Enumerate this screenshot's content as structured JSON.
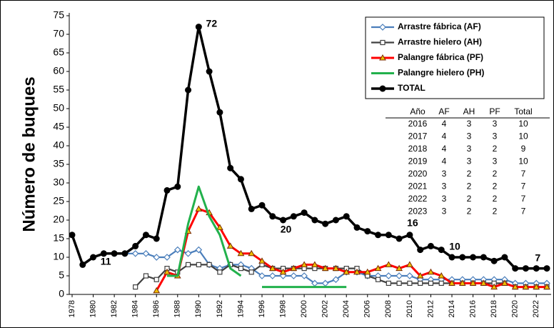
{
  "chart_data": {
    "type": "line",
    "y_label": "Número de buques",
    "x": [
      1978,
      1979,
      1980,
      1981,
      1982,
      1983,
      1984,
      1985,
      1986,
      1987,
      1988,
      1989,
      1990,
      1991,
      1992,
      1993,
      1994,
      1995,
      1996,
      1997,
      1998,
      1999,
      2000,
      2001,
      2002,
      2003,
      2004,
      2005,
      2006,
      2007,
      2008,
      2009,
      2010,
      2011,
      2012,
      2013,
      2014,
      2015,
      2016,
      2017,
      2018,
      2019,
      2020,
      2021,
      2022,
      2023
    ],
    "xlim": [
      1978,
      2023
    ],
    "xticks": [
      1978,
      1980,
      1982,
      1984,
      1986,
      1988,
      1990,
      1992,
      1994,
      1996,
      1998,
      2000,
      2002,
      2004,
      2006,
      2008,
      2010,
      2012,
      2014,
      2016,
      2018,
      2020,
      2022
    ],
    "ylim": [
      0,
      75
    ],
    "yticks": [
      0,
      5,
      10,
      15,
      20,
      25,
      30,
      35,
      40,
      45,
      50,
      55,
      60,
      65,
      70,
      75
    ],
    "grid": false,
    "legend": "top-right",
    "series": [
      {
        "name": "Arrastre fábrica (AF)",
        "color": "#4a7ebb",
        "marker": "diamond",
        "values": [
          null,
          null,
          null,
          11,
          11,
          11,
          11,
          11,
          10,
          10,
          12,
          11,
          12,
          8,
          7,
          8,
          8,
          7,
          5,
          5,
          5,
          5,
          5,
          3,
          3,
          4,
          6,
          6,
          5,
          5,
          5,
          5,
          5,
          4,
          4,
          4,
          4,
          4,
          4,
          4,
          4,
          4,
          3,
          3,
          3,
          3
        ]
      },
      {
        "name": "Arrastre hielero (AH)",
        "color": "#404040",
        "marker": "square",
        "values": [
          null,
          null,
          null,
          null,
          null,
          null,
          2,
          5,
          4,
          7,
          6,
          8,
          8,
          8,
          6,
          8,
          7,
          6,
          8,
          7,
          7,
          7,
          7,
          7,
          7,
          7,
          7,
          7,
          5,
          4,
          3,
          3,
          3,
          3,
          3,
          3,
          3,
          3,
          3,
          3,
          3,
          3,
          2,
          2,
          2,
          2
        ]
      },
      {
        "name": "Palangre fábrica (PF)",
        "color": "#ff0000",
        "marker": "triangle",
        "values": [
          null,
          null,
          null,
          null,
          null,
          null,
          null,
          null,
          1,
          6,
          5,
          17,
          23,
          22,
          18,
          13,
          11,
          11,
          9,
          7,
          6,
          7,
          8,
          8,
          7,
          7,
          6,
          6,
          6,
          7,
          8,
          7,
          8,
          5,
          6,
          5,
          3,
          3,
          3,
          3,
          2,
          3,
          2,
          2,
          2,
          2
        ]
      },
      {
        "name": "Palangre hielero (PH)",
        "color": "#22b14c",
        "marker": "none",
        "values": [
          null,
          null,
          null,
          null,
          null,
          null,
          null,
          null,
          null,
          5,
          5,
          19,
          29,
          21,
          16,
          7,
          5,
          null,
          2,
          2,
          2,
          2,
          2,
          2,
          2,
          2,
          2,
          null,
          null,
          null,
          null,
          null,
          null,
          null,
          null,
          null,
          null,
          null,
          null,
          null,
          null,
          null,
          null,
          null,
          null,
          null
        ]
      },
      {
        "name": "TOTAL",
        "color": "#000000",
        "marker": "circle",
        "values": [
          16,
          8,
          10,
          11,
          11,
          11,
          13,
          16,
          15,
          28,
          29,
          55,
          72,
          60,
          49,
          34,
          31,
          23,
          24,
          21,
          20,
          21,
          22,
          20,
          19,
          20,
          21,
          18,
          17,
          16,
          16,
          15,
          16,
          12,
          13,
          12,
          10,
          10,
          10,
          10,
          9,
          10,
          7,
          7,
          7,
          7
        ]
      }
    ],
    "annotations": [
      {
        "text": "72",
        "x": 1990
      },
      {
        "text": "11",
        "x": 1982
      },
      {
        "text": "20",
        "x": 1998
      },
      {
        "text": "16",
        "x": 2010
      },
      {
        "text": "10",
        "x": 2014
      },
      {
        "text": "7",
        "x": 2022
      }
    ],
    "table": {
      "columns": [
        "Año",
        "AF",
        "AH",
        "PF",
        "Total"
      ],
      "rows": [
        [
          "2016",
          "4",
          "3",
          "3",
          "10"
        ],
        [
          "2017",
          "4",
          "3",
          "3",
          "10"
        ],
        [
          "2018",
          "4",
          "3",
          "2",
          "9"
        ],
        [
          "2019",
          "4",
          "3",
          "3",
          "10"
        ],
        [
          "2020",
          "3",
          "2",
          "2",
          "7"
        ],
        [
          "2021",
          "3",
          "2",
          "2",
          "7"
        ],
        [
          "2022",
          "3",
          "2",
          "2",
          "7"
        ],
        [
          "2023",
          "3",
          "2",
          "2",
          "7"
        ]
      ]
    }
  }
}
